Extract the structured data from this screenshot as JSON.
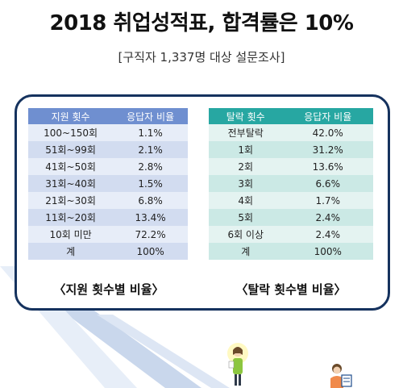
{
  "title": "2018 취업성적표, 합격률은 10%",
  "subtitle": "[구직자 1,337명 대상 설문조사]",
  "left_table": {
    "headers": [
      "지원 횟수",
      "응답자 비율"
    ],
    "rows": [
      [
        "100~150회",
        "1.1%"
      ],
      [
        "51회~99회",
        "2.1%"
      ],
      [
        "41회~50회",
        "2.8%"
      ],
      [
        "31회~40회",
        "1.5%"
      ],
      [
        "21회~30회",
        "6.8%"
      ],
      [
        "11회~20회",
        "13.4%"
      ],
      [
        "10회 미만",
        "72.2%"
      ],
      [
        "계",
        "100%"
      ]
    ],
    "caption": "〈지원 횟수별 비율〉",
    "header_color": "#6f8fd0"
  },
  "right_table": {
    "headers": [
      "탈락 횟수",
      "응답자 비율"
    ],
    "rows": [
      [
        "전부탈락",
        "42.0%"
      ],
      [
        "1회",
        "31.2%"
      ],
      [
        "2회",
        "13.6%"
      ],
      [
        "3회",
        "6.6%"
      ],
      [
        "4회",
        "1.7%"
      ],
      [
        "5회",
        "2.4%"
      ],
      [
        "6회 이상",
        "2.4%"
      ],
      [
        "계",
        "100%"
      ]
    ],
    "caption": "〈탈락 횟수별 비율〉",
    "header_color": "#27a7a2"
  },
  "colors": {
    "frame": "#15325e",
    "accent_stripe": "#c9d7ec"
  },
  "illustration": {
    "icons": [
      "person-on-stairs-icon",
      "person-with-document-icon"
    ]
  }
}
